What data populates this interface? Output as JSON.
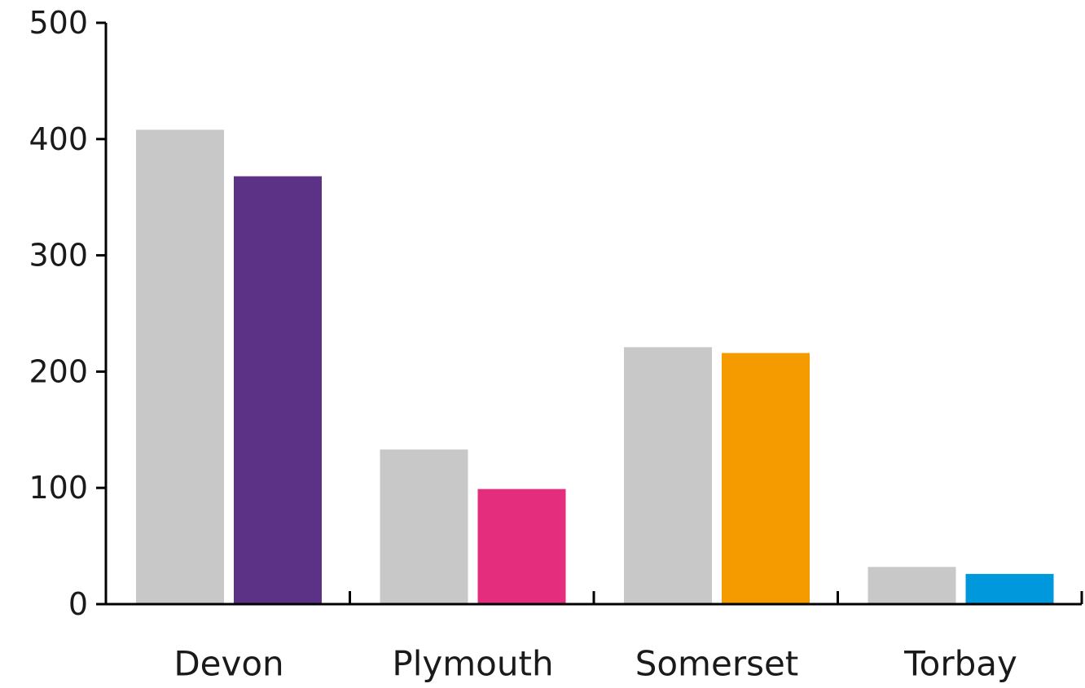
{
  "chart_data": {
    "type": "bar",
    "title": "",
    "xlabel": "",
    "ylabel": "",
    "ylim": [
      0,
      500
    ],
    "yticks": [
      0,
      100,
      200,
      300,
      400,
      500
    ],
    "categories": [
      "Devon",
      "Plymouth",
      "Somerset",
      "Torbay"
    ],
    "grid": false,
    "legend": "none",
    "series": [
      {
        "values": [
          408,
          133,
          221,
          32
        ],
        "colors": [
          "#c8c8c8",
          "#c8c8c8",
          "#c8c8c8",
          "#c8c8c8"
        ]
      },
      {
        "values": [
          368,
          99,
          216,
          26
        ],
        "colors": [
          "#5b3285",
          "#e52d7d",
          "#f59b00",
          "#0098dc"
        ]
      }
    ]
  }
}
